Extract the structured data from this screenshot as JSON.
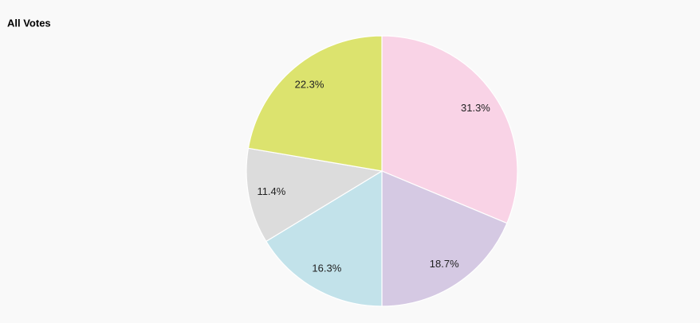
{
  "chart_data": {
    "type": "pie",
    "title": "All Votes",
    "values": [
      31.3,
      18.7,
      16.3,
      11.4,
      22.3
    ],
    "value_labels": [
      "31.3%",
      "18.7%",
      "16.3%",
      "11.4%",
      "22.3%"
    ],
    "colors": [
      "#f9d3e6",
      "#d5c9e3",
      "#c2e2ea",
      "#dcdcdc",
      "#dce36e"
    ]
  }
}
